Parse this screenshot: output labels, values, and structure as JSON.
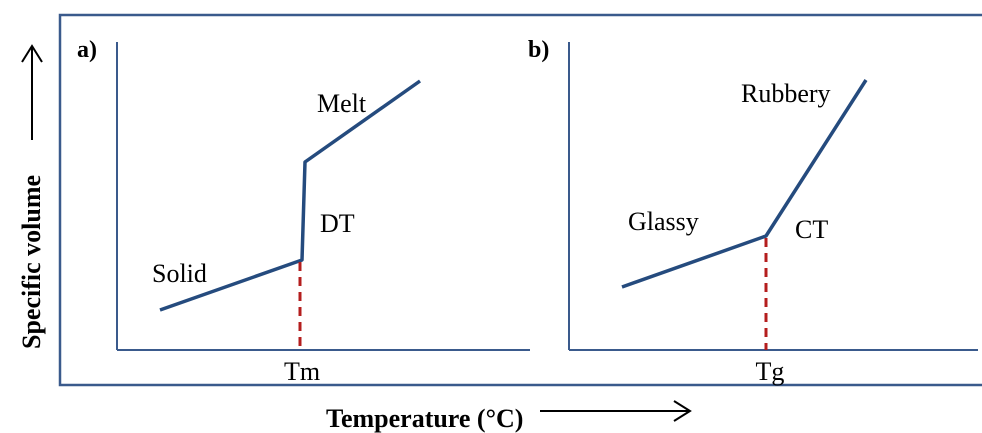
{
  "y_axis_label": "Specific volume",
  "x_axis_label": "Temperature (°C)",
  "panel_a": {
    "tag": "a)",
    "segments": {
      "low": "Solid",
      "transition": "DT",
      "high": "Melt"
    },
    "tick_label": "Tm"
  },
  "panel_b": {
    "tag": "b)",
    "segments": {
      "low": "Glassy",
      "transition": "CT",
      "high": "Rubbery"
    },
    "tick_label": "Tg"
  },
  "colors": {
    "frame": "#3a5a8c",
    "curve": "#254b7e",
    "marker": "#b41e1e",
    "axis": "#3a5a8c"
  }
}
